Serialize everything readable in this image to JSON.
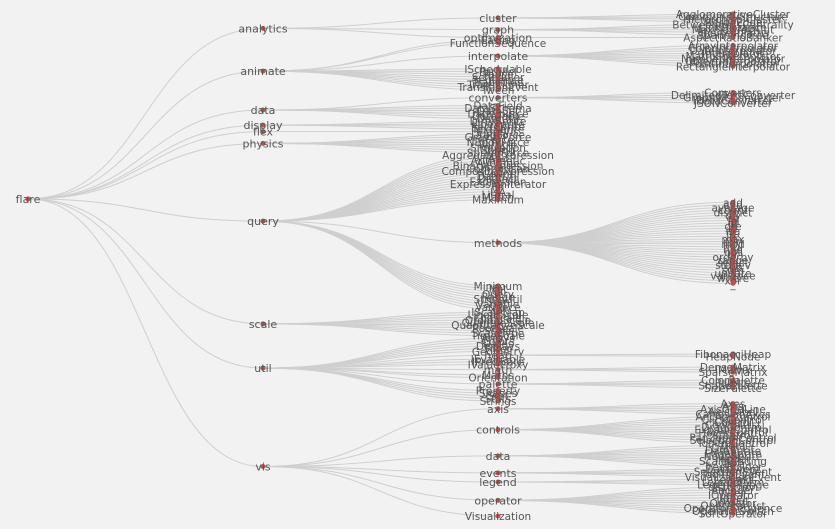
{
  "chart_data": {
    "type": "tree",
    "root": "flare",
    "tree": {
      "analytics": {
        "cluster": [
          "AgglomerativeCluster",
          "CommunityStructure",
          "HierarchicalCluster",
          "MergeEdge"
        ],
        "graph": [
          "BetweennessCentrality",
          "LinkDistance",
          "MaxFlowMinCut",
          "ShortestPaths",
          "SpanningTree"
        ],
        "optimization": [
          "AspectRatioBanker"
        ]
      },
      "animate": {
        "Easing": [],
        "FunctionSequence": [],
        "interpolate": [
          "ArrayInterpolator",
          "ColorInterpolator",
          "DateInterpolator",
          "Interpolator",
          "MatrixInterpolator",
          "NumberInterpolator",
          "ObjectInterpolator",
          "PointInterpolator",
          "RectangleInterpolator"
        ],
        "ISchedulable": [],
        "Parallel": [],
        "Pause": [],
        "Scheduler": [],
        "Sequence": [],
        "Transition": [],
        "Transitioner": [],
        "TransitionEvent": [],
        "Tween": []
      },
      "data": {
        "converters": [
          "Converters",
          "DelimitedTextConverter",
          "GraphMLConverter",
          "IDataConverter",
          "JSONConverter"
        ],
        "DataField": [],
        "DataSchema": [],
        "DataSet": [],
        "DataSource": [],
        "DataTable": [],
        "DataUtil": []
      },
      "display": {
        "DirtySprite": [],
        "LineSprite": [],
        "RectSprite": [],
        "TextSprite": []
      },
      "flex": {
        "FlareVis": []
      },
      "physics": {
        "DragForce": [],
        "GravityForce": [],
        "IForce": [],
        "NBodyForce": [],
        "Particle": [],
        "Simulation": [],
        "Spring": [],
        "SpringForce": []
      },
      "query": {
        "AggregateExpression": [],
        "And": [],
        "Arithmetic": [],
        "Average": [],
        "BinaryExpression": [],
        "Comparison": [],
        "CompositeExpression": [],
        "Count": [],
        "DateUtil": [],
        "Distinct": [],
        "Expression": [],
        "ExpressionIterator": [],
        "Fn": [],
        "If": [],
        "IsA": [],
        "Literal": [],
        "Match": [],
        "Maximum": [],
        "methods": [
          "add",
          "and",
          "average",
          "count",
          "distinct",
          "div",
          "eq",
          "fn",
          "gt",
          "gte",
          "iff",
          "isa",
          "lt",
          "lte",
          "max",
          "min",
          "mod",
          "mul",
          "neq",
          "not",
          "or",
          "orderby",
          "range",
          "select",
          "stddev",
          "sub",
          "sum",
          "update",
          "variance",
          "where",
          "xor",
          "_"
        ],
        "Minimum": [],
        "Not": [],
        "Or": [],
        "Query": [],
        "Range": [],
        "StringUtil": [],
        "Sum": [],
        "Variable": [],
        "Variance": [],
        "Xor": []
      },
      "scale": {
        "IScaleMap": [],
        "LinearScale": [],
        "LogScale": [],
        "OrdinalScale": [],
        "QuantileScale": [],
        "QuantitativeScale": [],
        "RootScale": [],
        "Scale": [],
        "ScaleType": [],
        "TimeScale": []
      },
      "util": {
        "Arrays": [],
        "Colors": [],
        "Dates": [],
        "Displays": [],
        "Filter": [],
        "Geometry": [],
        "heap": [
          "FibonacciHeap",
          "HeapNode"
        ],
        "IEvaluable": [],
        "IPredicate": [],
        "IValueProxy": [],
        "math": [
          "DenseMatrix",
          "IMatrix",
          "SparseMatrix"
        ],
        "Maths": [],
        "Orientation": [],
        "palette": [
          "ColorPalette",
          "Palette",
          "ShapePalette",
          "SizePalette"
        ],
        "Property": [],
        "Shapes": [],
        "Sort": [],
        "Stats": [],
        "Strings": []
      },
      "vis": {
        "axis": [
          "Axes",
          "Axis",
          "AxisGridLine",
          "AxisLabel",
          "CartesianAxes"
        ],
        "controls": [
          "AnchorControl",
          "ClickControl",
          "Control",
          "ControlList",
          "DragControl",
          "ExpandControl",
          "HoverControl",
          "IControl",
          "PanZoomControl",
          "SelectionControl",
          "TooltipControl"
        ],
        "data": [
          "Data",
          "DataList",
          "DataSprite",
          "EdgeSprite",
          "NodeSprite",
          "render",
          "ScaleBinding",
          "Tree",
          "TreeBuilder"
        ],
        "events": [
          "DataEvent",
          "SelectionEvent",
          "TooltipEvent",
          "VisualizationEvent"
        ],
        "legend": [
          "Legend",
          "LegendItem",
          "LegendRange"
        ],
        "operator": [
          "distortion",
          "encoder",
          "filter",
          "IOperator",
          "label",
          "layout",
          "Operator",
          "OperatorList",
          "OperatorSequence",
          "OperatorSwitch",
          "SortOperator"
        ],
        "Visualization": []
      }
    },
    "colors": {
      "background": "#f2f2f2",
      "link": "#cfcfcf",
      "node": "#c0504d",
      "text": "#555555"
    }
  }
}
